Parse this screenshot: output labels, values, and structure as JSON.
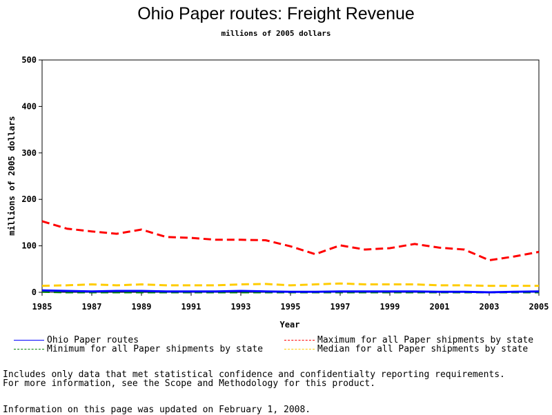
{
  "chart_data": {
    "type": "line",
    "title": "Ohio Paper routes: Freight Revenue",
    "subtitle": "millions of 2005 dollars",
    "xlabel": "Year",
    "ylabel": "millions of 2005 dollars",
    "xlim": [
      1985,
      2005
    ],
    "ylim": [
      0,
      500
    ],
    "x_ticks": [
      "1985",
      "1987",
      "1989",
      "1991",
      "1993",
      "1995",
      "1997",
      "1999",
      "2001",
      "2003",
      "2005"
    ],
    "y_ticks": [
      "0",
      "100",
      "200",
      "300",
      "400",
      "500"
    ],
    "grid": false,
    "legend_position": "bottom",
    "x": [
      1985,
      1986,
      1987,
      1988,
      1989,
      1990,
      1991,
      1992,
      1993,
      1994,
      1995,
      1996,
      1997,
      1998,
      1999,
      2000,
      2001,
      2002,
      2003,
      2004,
      2005
    ],
    "series": [
      {
        "name": "Ohio Paper routes",
        "color": "#0000ff",
        "dash": "solid",
        "values": [
          4,
          3,
          2,
          3,
          3,
          2,
          2,
          2,
          3,
          2,
          1,
          1,
          2,
          2,
          2,
          2,
          1,
          1,
          0,
          1,
          2
        ]
      },
      {
        "name": "Maximum for all Paper shipments by state",
        "color": "#ff0000",
        "dash": "dashed",
        "values": [
          153,
          137,
          131,
          126,
          135,
          119,
          117,
          113,
          113,
          112,
          99,
          82,
          101,
          92,
          95,
          104,
          96,
          92,
          69,
          77,
          87
        ]
      },
      {
        "name": "Minimum for all Paper shipments by state",
        "color": "#008000",
        "dash": "dashed",
        "values": [
          1,
          0,
          0,
          0,
          0,
          0,
          0,
          0,
          0,
          0,
          0,
          0,
          0,
          0,
          0,
          0,
          0,
          0,
          0,
          0,
          0
        ]
      },
      {
        "name": "Median for all Paper shipments by state",
        "color": "#ffcc00",
        "dash": "dashed",
        "values": [
          14,
          15,
          17,
          15,
          17,
          15,
          15,
          15,
          17,
          18,
          15,
          17,
          19,
          17,
          17,
          17,
          15,
          15,
          14,
          14,
          14
        ]
      }
    ]
  },
  "notes": {
    "line1": "Includes only data that met statistical confidence and confidentialty reporting requirements.",
    "line2": "For more information, see the Scope and Methodology for this product.",
    "updated": "Information on this page was updated on February 1, 2008."
  }
}
